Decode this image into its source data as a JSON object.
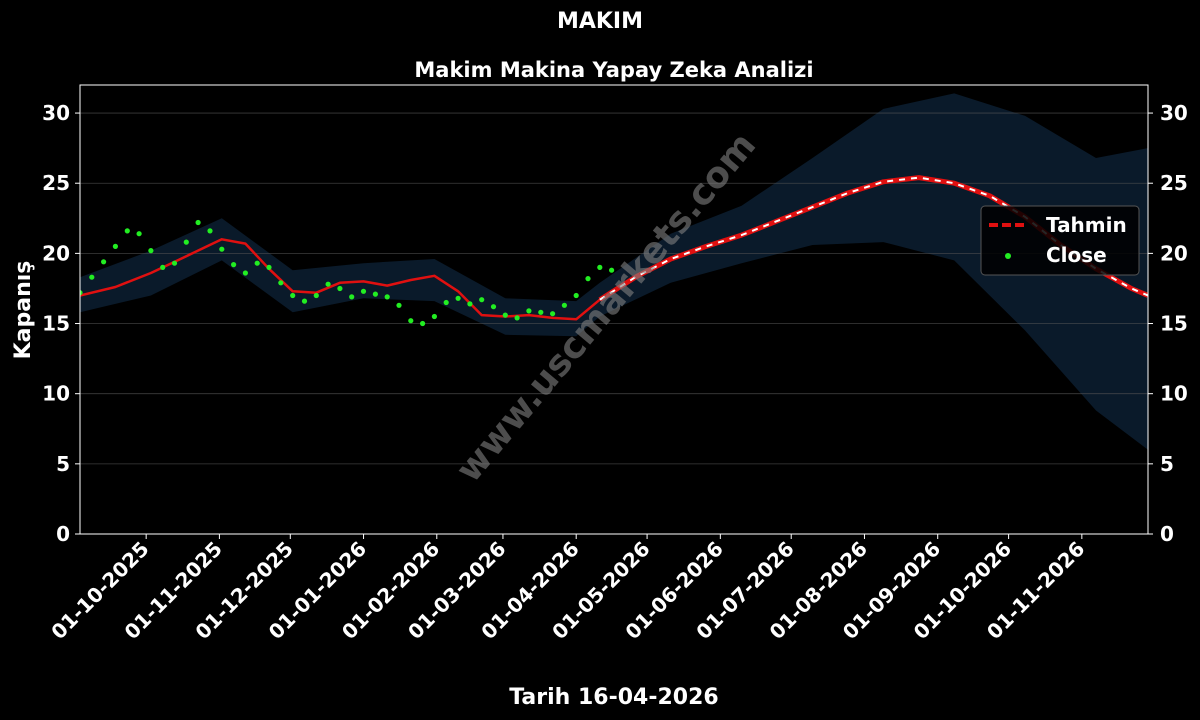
{
  "chart_data": {
    "type": "line",
    "suptitle": "MAKIM",
    "title": "Makim Makina Yapay Zeka Analizi",
    "xlabel": "Tarih 16-04-2026",
    "ylabel": "Kapanış",
    "ylim": [
      0,
      32
    ],
    "xlim": [
      "2025-09-03",
      "2026-11-29"
    ],
    "y_ticks": [
      0,
      5,
      10,
      15,
      20,
      25,
      30
    ],
    "x_ticks": [
      {
        "date": "2025-10-01",
        "label": "01-10-2025"
      },
      {
        "date": "2025-11-01",
        "label": "01-11-2025"
      },
      {
        "date": "2025-12-01",
        "label": "01-12-2025"
      },
      {
        "date": "2026-01-01",
        "label": "01-01-2026"
      },
      {
        "date": "2026-02-01",
        "label": "01-02-2026"
      },
      {
        "date": "2026-03-01",
        "label": "01-03-2026"
      },
      {
        "date": "2026-04-01",
        "label": "01-04-2026"
      },
      {
        "date": "2026-05-01",
        "label": "01-05-2026"
      },
      {
        "date": "2026-06-01",
        "label": "01-06-2026"
      },
      {
        "date": "2026-07-01",
        "label": "01-07-2026"
      },
      {
        "date": "2026-08-01",
        "label": "01-08-2026"
      },
      {
        "date": "2026-09-01",
        "label": "01-09-2026"
      },
      {
        "date": "2026-10-01",
        "label": "01-10-2026"
      },
      {
        "date": "2026-11-01",
        "label": "01-11-2026"
      }
    ],
    "grid": true,
    "legend": {
      "position": "right",
      "entries": [
        "Tahmin",
        "Close"
      ]
    },
    "watermark": "www.uscmarkets.com",
    "colors": {
      "background": "#000000",
      "band": "#0a1a2a",
      "model_line": "#e01010",
      "forecast_dash": "#ffffff",
      "close": "#22ee22",
      "grid": "#555555",
      "text": "#ffffff"
    },
    "series": [
      {
        "name": "Close",
        "style": "scatter",
        "x": [
          "2025-09-03",
          "2025-09-08",
          "2025-09-13",
          "2025-09-18",
          "2025-09-23",
          "2025-09-28",
          "2025-10-03",
          "2025-10-08",
          "2025-10-13",
          "2025-10-18",
          "2025-10-23",
          "2025-10-28",
          "2025-11-02",
          "2025-11-07",
          "2025-11-12",
          "2025-11-17",
          "2025-11-22",
          "2025-11-27",
          "2025-12-02",
          "2025-12-07",
          "2025-12-12",
          "2025-12-17",
          "2025-12-22",
          "2025-12-27",
          "2026-01-01",
          "2026-01-06",
          "2026-01-11",
          "2026-01-16",
          "2026-01-21",
          "2026-01-26",
          "2026-01-31",
          "2026-02-05",
          "2026-02-10",
          "2026-02-15",
          "2026-02-20",
          "2026-02-25",
          "2026-03-02",
          "2026-03-07",
          "2026-03-12",
          "2026-03-17",
          "2026-03-22",
          "2026-03-27",
          "2026-04-01",
          "2026-04-06",
          "2026-04-11",
          "2026-04-16"
        ],
        "y": [
          17.2,
          18.3,
          19.4,
          20.5,
          21.6,
          21.4,
          20.2,
          19.0,
          19.3,
          20.8,
          22.2,
          21.6,
          20.3,
          19.2,
          18.6,
          19.3,
          19.0,
          17.9,
          17.0,
          16.6,
          17.0,
          17.8,
          17.5,
          16.9,
          17.3,
          17.1,
          16.9,
          16.3,
          15.2,
          15.0,
          15.5,
          16.5,
          16.8,
          16.4,
          16.7,
          16.2,
          15.6,
          15.4,
          15.9,
          15.8,
          15.7,
          16.3,
          17.0,
          18.2,
          19.0,
          18.8
        ]
      },
      {
        "name": "Tahmin",
        "style": "solid-red-with-dashed-white-forecast",
        "x": [
          "2025-09-03",
          "2025-09-18",
          "2025-10-03",
          "2025-10-18",
          "2025-11-02",
          "2025-11-12",
          "2025-11-22",
          "2025-12-02",
          "2025-12-12",
          "2025-12-22",
          "2026-01-01",
          "2026-01-11",
          "2026-01-21",
          "2026-01-31",
          "2026-02-10",
          "2026-02-20",
          "2026-03-02",
          "2026-03-12",
          "2026-03-22",
          "2026-04-01",
          "2026-04-11",
          "2026-04-26",
          "2026-05-11",
          "2026-05-26",
          "2026-06-10",
          "2026-06-25",
          "2026-07-10",
          "2026-07-25",
          "2026-08-09",
          "2026-08-24",
          "2026-09-08",
          "2026-09-23",
          "2026-10-08",
          "2026-10-23",
          "2026-11-07",
          "2026-11-22",
          "2026-11-29"
        ],
        "y": [
          17.0,
          17.6,
          18.6,
          19.8,
          21.0,
          20.7,
          18.9,
          17.3,
          17.2,
          17.9,
          18.0,
          17.7,
          18.1,
          18.4,
          17.3,
          15.6,
          15.5,
          15.6,
          15.4,
          15.3,
          16.7,
          18.3,
          19.6,
          20.5,
          21.3,
          22.3,
          23.3,
          24.3,
          25.1,
          25.4,
          25.0,
          24.1,
          22.6,
          20.6,
          18.9,
          17.5,
          17.0
        ]
      }
    ],
    "band": {
      "name": "confidence",
      "x": [
        "2025-09-03",
        "2025-10-03",
        "2025-11-02",
        "2025-12-02",
        "2026-01-01",
        "2026-01-31",
        "2026-03-02",
        "2026-04-01",
        "2026-04-11",
        "2026-05-11",
        "2026-06-10",
        "2026-07-10",
        "2026-08-09",
        "2026-09-08",
        "2026-10-08",
        "2026-11-07",
        "2026-11-29"
      ],
      "upper": [
        18.3,
        20.2,
        22.5,
        18.8,
        19.3,
        19.6,
        16.8,
        16.6,
        17.9,
        21.4,
        23.4,
        26.8,
        30.3,
        31.4,
        29.8,
        26.8,
        27.5
      ],
      "lower": [
        15.8,
        17.0,
        19.5,
        15.8,
        16.8,
        16.6,
        14.2,
        14.1,
        15.5,
        17.9,
        19.3,
        20.6,
        20.8,
        19.5,
        14.5,
        8.8,
        6.0
      ]
    }
  }
}
